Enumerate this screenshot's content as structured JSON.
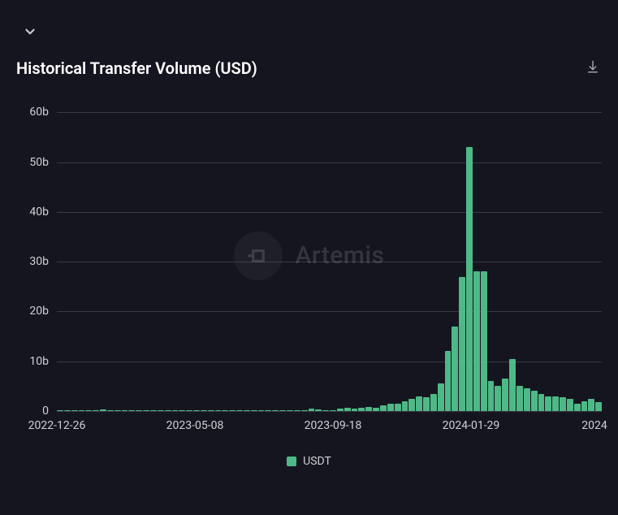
{
  "top_selector": {
    "label": ""
  },
  "header": {
    "title": "Historical Transfer Volume (USD)"
  },
  "watermark": {
    "text": "Artemis"
  },
  "chart": {
    "type": "bar",
    "background_color": "#15151f",
    "grid_color": "#3a3a44",
    "bar_color": "#4eb987",
    "text_color": "#d0d0d5",
    "title_fontsize": 20,
    "label_fontsize": 14,
    "ylim": [
      0,
      62
    ],
    "yticks": [
      0,
      10,
      20,
      30,
      40,
      50,
      60
    ],
    "ytick_labels": [
      "0",
      "10b",
      "20b",
      "30b",
      "40b",
      "50b",
      "60b"
    ],
    "xtick_positions": [
      0,
      19,
      38,
      57,
      74
    ],
    "xtick_labels": [
      "2022-12-26",
      "2023-05-08",
      "2023-09-18",
      "2024-01-29",
      "2024"
    ],
    "series": [
      {
        "name": "USDT",
        "color": "#4eb987",
        "values": [
          0.1,
          0.1,
          0.1,
          0.1,
          0.1,
          0.1,
          0.3,
          0.2,
          0.1,
          0.1,
          0.1,
          0.1,
          0.1,
          0.1,
          0.1,
          0.1,
          0.1,
          0.1,
          0.1,
          0.1,
          0.1,
          0.1,
          0.1,
          0.1,
          0.1,
          0.1,
          0.1,
          0.1,
          0.1,
          0.1,
          0.1,
          0.1,
          0.1,
          0.1,
          0.2,
          0.5,
          0.4,
          0.2,
          0.2,
          0.5,
          0.6,
          0.5,
          0.7,
          0.8,
          0.6,
          1.2,
          1.4,
          1.5,
          2.0,
          2.5,
          3.0,
          2.8,
          3.5,
          5.5,
          12.0,
          17.0,
          27.0,
          53.0,
          28.0,
          28.0,
          6.0,
          5.0,
          6.5,
          10.5,
          5.0,
          4.5,
          4.0,
          3.5,
          3.0,
          3.0,
          2.8,
          2.5,
          1.5,
          2.0,
          2.5,
          1.8
        ]
      }
    ]
  },
  "legend": {
    "items": [
      {
        "label": "USDT",
        "color": "#4eb987"
      }
    ]
  }
}
